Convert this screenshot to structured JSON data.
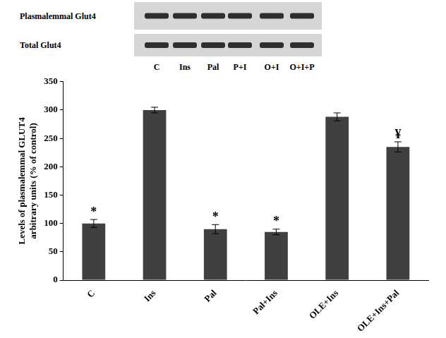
{
  "chart_data": {
    "type": "bar",
    "categories": [
      "C",
      "Ins",
      "Pal",
      "Pal+Ins",
      "OLE+Ins",
      "OLE+Ins+Pal"
    ],
    "values": [
      100,
      300,
      90,
      85,
      288,
      235
    ],
    "errors": [
      7,
      5,
      8,
      5,
      7,
      9
    ],
    "annotations": [
      "*",
      null,
      "*",
      "*",
      null,
      "¥"
    ],
    "color": "#404040",
    "y_label": [
      "Levels of plasmalemmal GLUT4",
      "arbitrary units (% of control)"
    ],
    "ylim": [
      0,
      350
    ],
    "yticks": [
      0,
      50,
      100,
      150,
      200,
      250,
      300,
      350
    ],
    "grid": false
  },
  "blot": {
    "rows": [
      "Plasmalemmal Glut4",
      "Total Glut4"
    ],
    "lanes": [
      "C",
      "Ins",
      "Pal",
      "P+I",
      "O+I",
      "O+I+P"
    ]
  }
}
